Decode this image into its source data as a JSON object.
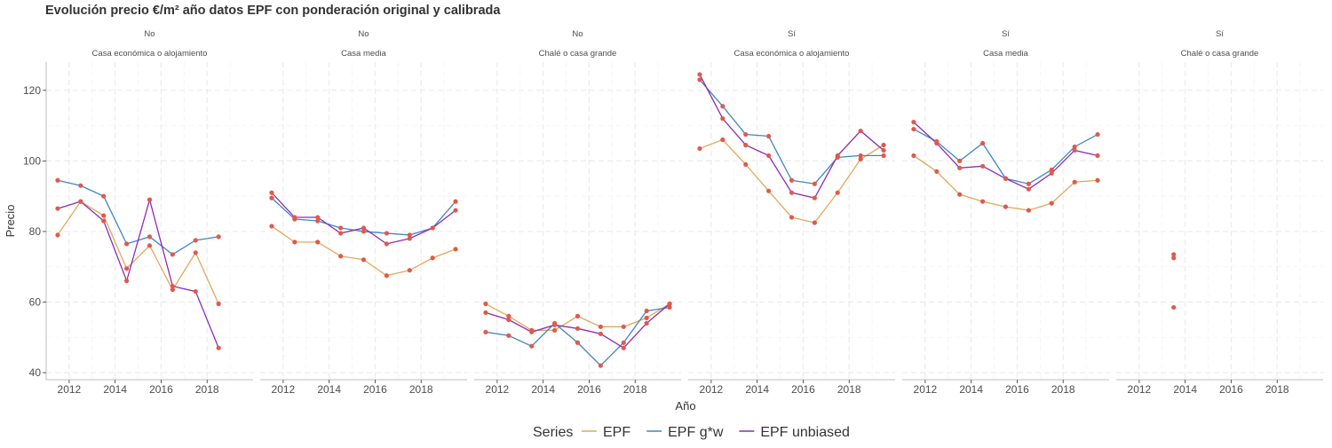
{
  "chart_data": {
    "type": "line",
    "title": "Evolución precio €/m² año datos EPF con ponderación original y calibrada",
    "xlabel": "Año",
    "ylabel": "Precio",
    "ylim": [
      38,
      128
    ],
    "xlim": [
      2011.0,
      2020.0
    ],
    "x_ticks": [
      2012,
      2014,
      2016,
      2018
    ],
    "y_ticks": [
      40,
      60,
      80,
      100,
      120
    ],
    "grid": true,
    "legend": {
      "title": "Series",
      "position": "bottom"
    },
    "series_styles": [
      {
        "name": "EPF",
        "color": "#E0A95A"
      },
      {
        "name": "EPF g*w",
        "color": "#3F87C1"
      },
      {
        "name": "EPF unbiased",
        "color": "#8E2BB3"
      }
    ],
    "point_color": "#E0594C",
    "panels": [
      {
        "strip_top": "No",
        "strip_bottom": "Casa económica o alojamiento",
        "series": [
          {
            "name": "EPF",
            "x": [
              2011.5,
              2012.5,
              2013.5,
              2014.5,
              2015.5,
              2016.5,
              2017.5,
              2018.5
            ],
            "values": [
              79,
              88.5,
              84.5,
              69.5,
              76,
              63.5,
              74,
              59.5
            ]
          },
          {
            "name": "EPF g*w",
            "x": [
              2011.5,
              2012.5,
              2013.5,
              2014.5,
              2015.5,
              2016.5,
              2017.5,
              2018.5
            ],
            "values": [
              94.5,
              93,
              90,
              76.5,
              78.5,
              73.5,
              77.5,
              78.5
            ]
          },
          {
            "name": "EPF unbiased",
            "x": [
              2011.5,
              2012.5,
              2013.5,
              2014.5,
              2015.5,
              2016.5,
              2017.5,
              2018.5
            ],
            "values": [
              86.5,
              88.5,
              83,
              66,
              89,
              64.5,
              63,
              47
            ]
          }
        ]
      },
      {
        "strip_top": "No",
        "strip_bottom": "Casa media",
        "series": [
          {
            "name": "EPF",
            "x": [
              2011.5,
              2012.5,
              2013.5,
              2014.5,
              2015.5,
              2016.5,
              2017.5,
              2018.5,
              2019.5
            ],
            "values": [
              81.5,
              77,
              77,
              73,
              72,
              67.5,
              69,
              72.5,
              75
            ]
          },
          {
            "name": "EPF g*w",
            "x": [
              2011.5,
              2012.5,
              2013.5,
              2014.5,
              2015.5,
              2016.5,
              2017.5,
              2018.5,
              2019.5
            ],
            "values": [
              89.5,
              83.5,
              83,
              81,
              80,
              79.5,
              79,
              81,
              88.5
            ]
          },
          {
            "name": "EPF unbiased",
            "x": [
              2011.5,
              2012.5,
              2013.5,
              2014.5,
              2015.5,
              2016.5,
              2017.5,
              2018.5,
              2019.5
            ],
            "values": [
              91,
              84,
              84,
              79.5,
              81,
              76.5,
              78,
              81,
              86
            ]
          }
        ]
      },
      {
        "strip_top": "No",
        "strip_bottom": "Chalé o casa grande",
        "series": [
          {
            "name": "EPF",
            "x": [
              2011.5,
              2012.5,
              2013.5,
              2014.5,
              2015.5,
              2016.5,
              2017.5,
              2018.5,
              2019.5
            ],
            "values": [
              59.5,
              56,
              52,
              52,
              56,
              53,
              53,
              55.5,
              59.5
            ]
          },
          {
            "name": "EPF g*w",
            "x": [
              2011.5,
              2012.5,
              2013.5,
              2014.5,
              2015.5,
              2016.5,
              2017.5,
              2018.5,
              2019.5
            ],
            "values": [
              51.5,
              50.5,
              47.5,
              54,
              48.5,
              42,
              48.5,
              57.5,
              58.5
            ]
          },
          {
            "name": "EPF unbiased",
            "x": [
              2011.5,
              2012.5,
              2013.5,
              2014.5,
              2015.5,
              2016.5,
              2017.5,
              2018.5,
              2019.5
            ],
            "values": [
              57,
              55,
              51.5,
              53.5,
              52.5,
              51,
              47,
              54,
              59.5
            ]
          }
        ]
      },
      {
        "strip_top": "Sí",
        "strip_bottom": "Casa económica o alojamiento",
        "series": [
          {
            "name": "EPF",
            "x": [
              2011.5,
              2012.5,
              2013.5,
              2014.5,
              2015.5,
              2016.5,
              2017.5,
              2018.5,
              2019.5
            ],
            "values": [
              103.5,
              106,
              99,
              91.5,
              84,
              82.5,
              91,
              100.5,
              104.5
            ]
          },
          {
            "name": "EPF g*w",
            "x": [
              2011.5,
              2012.5,
              2013.5,
              2014.5,
              2015.5,
              2016.5,
              2017.5,
              2018.5,
              2019.5
            ],
            "values": [
              123,
              115.5,
              107.5,
              107,
              94.5,
              93.5,
              101,
              101.5,
              101.5
            ]
          },
          {
            "name": "EPF unbiased",
            "x": [
              2011.5,
              2012.5,
              2013.5,
              2014.5,
              2015.5,
              2016.5,
              2017.5,
              2018.5,
              2019.5
            ],
            "values": [
              124.5,
              112,
              104.5,
              101.5,
              91,
              89.5,
              101.5,
              108.5,
              103
            ]
          }
        ]
      },
      {
        "strip_top": "Sí",
        "strip_bottom": "Casa media",
        "series": [
          {
            "name": "EPF",
            "x": [
              2011.5,
              2012.5,
              2013.5,
              2014.5,
              2015.5,
              2016.5,
              2017.5,
              2018.5,
              2019.5
            ],
            "values": [
              101.5,
              97,
              90.5,
              88.5,
              87,
              86,
              88,
              94,
              94.5
            ]
          },
          {
            "name": "EPF g*w",
            "x": [
              2011.5,
              2012.5,
              2013.5,
              2014.5,
              2015.5,
              2016.5,
              2017.5,
              2018.5,
              2019.5
            ],
            "values": [
              109,
              105.5,
              100,
              105,
              95,
              93.5,
              97.5,
              104,
              107.5
            ]
          },
          {
            "name": "EPF unbiased",
            "x": [
              2011.5,
              2012.5,
              2013.5,
              2014.5,
              2015.5,
              2016.5,
              2017.5,
              2018.5,
              2019.5
            ],
            "values": [
              111,
              105,
              98,
              98.5,
              95,
              92,
              96.5,
              103,
              101.5
            ]
          }
        ]
      },
      {
        "strip_top": "Sí",
        "strip_bottom": "Chalé o casa grande",
        "series": [
          {
            "name": "EPF",
            "x": [
              2013.5
            ],
            "values": [
              58.5
            ]
          },
          {
            "name": "EPF g*w",
            "x": [
              2013.5
            ],
            "values": [
              72.5
            ]
          },
          {
            "name": "EPF unbiased",
            "x": [
              2013.5
            ],
            "values": [
              73.5
            ]
          }
        ]
      }
    ]
  }
}
